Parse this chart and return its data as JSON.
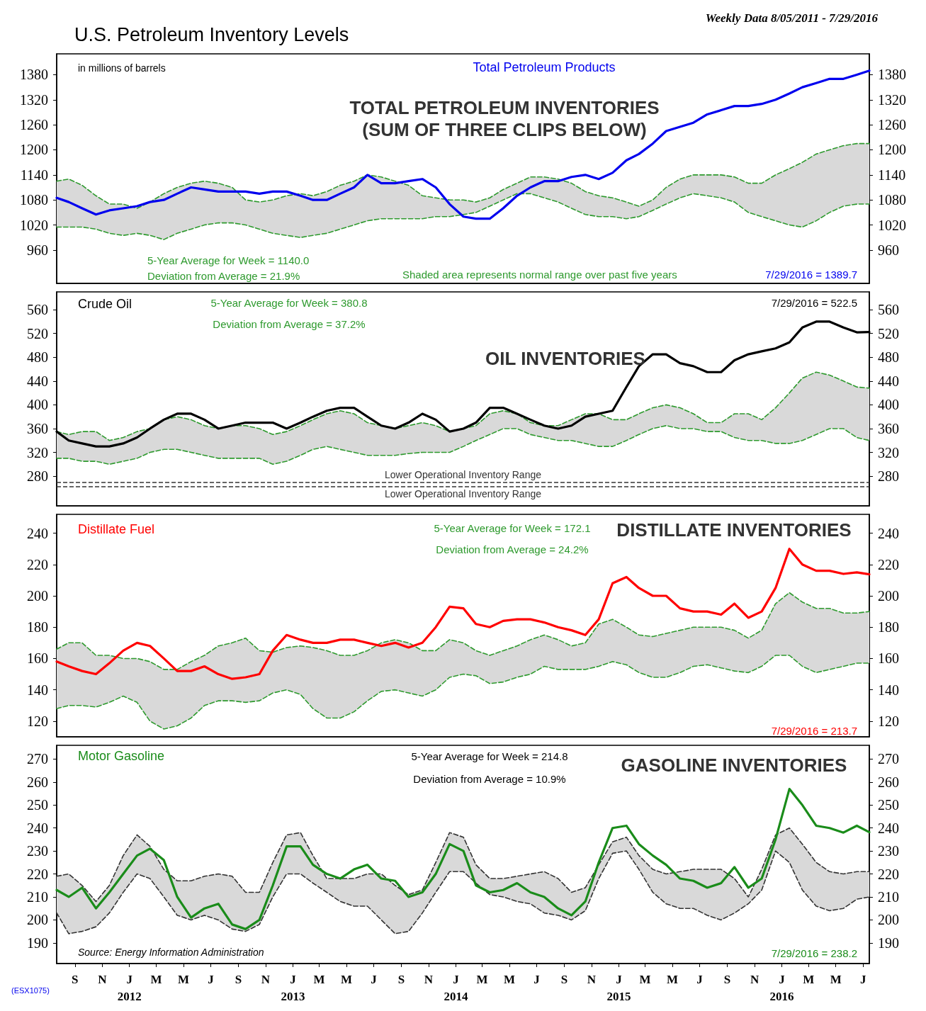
{
  "chart_data": [
    {
      "type": "line",
      "title": "U.S. Petroleum Inventory Levels",
      "subtitle": "Weekly Data 8/05/2011 - 7/29/2016",
      "annotations": [
        "in millions of barrels",
        "TOTAL PETROLEUM INVENTORIES\n(SUM OF THREE CLIPS BELOW)",
        "5-Year Average for Week = 1140.0",
        "Deviation from Average = 21.9%",
        "Shaded area represents normal range over past five years",
        "7/29/2016 = 1389.7"
      ],
      "x": [
        "2011-08-05",
        "2011-09-01",
        "2011-10-01",
        "2011-11-01",
        "2011-12-01",
        "2012-01-01",
        "2012-02-01",
        "2012-03-01",
        "2012-04-01",
        "2012-05-01",
        "2012-06-01",
        "2012-07-01",
        "2012-08-01",
        "2012-09-01",
        "2012-10-01",
        "2012-11-01",
        "2012-12-01",
        "2013-01-01",
        "2013-02-01",
        "2013-03-01",
        "2013-04-01",
        "2013-05-01",
        "2013-06-01",
        "2013-07-01",
        "2013-08-01",
        "2013-09-01",
        "2013-10-01",
        "2013-11-01",
        "2013-12-01",
        "2014-01-01",
        "2014-02-01",
        "2014-03-01",
        "2014-04-01",
        "2014-05-01",
        "2014-06-01",
        "2014-07-01",
        "2014-08-01",
        "2014-09-01",
        "2014-10-01",
        "2014-11-01",
        "2014-12-01",
        "2015-01-01",
        "2015-02-01",
        "2015-03-01",
        "2015-04-01",
        "2015-05-01",
        "2015-06-01",
        "2015-07-01",
        "2015-08-01",
        "2015-09-01",
        "2015-10-01",
        "2015-11-01",
        "2015-12-01",
        "2016-01-01",
        "2016-02-01",
        "2016-03-01",
        "2016-04-01",
        "2016-05-01",
        "2016-06-01",
        "2016-07-01",
        "2016-07-29"
      ],
      "series": [
        {
          "name": "Total Petroleum Products",
          "color": "#0000ee",
          "values": [
            1085,
            1075,
            1060,
            1045,
            1055,
            1060,
            1065,
            1075,
            1080,
            1095,
            1110,
            1105,
            1100,
            1100,
            1100,
            1095,
            1100,
            1100,
            1090,
            1080,
            1080,
            1095,
            1110,
            1140,
            1120,
            1120,
            1125,
            1130,
            1110,
            1070,
            1040,
            1035,
            1035,
            1060,
            1090,
            1110,
            1125,
            1125,
            1135,
            1140,
            1130,
            1145,
            1175,
            1190,
            1215,
            1245,
            1255,
            1265,
            1285,
            1295,
            1305,
            1305,
            1310,
            1320,
            1335,
            1350,
            1360,
            1370,
            1370,
            1380,
            1389.7
          ],
          "upper": [
            1125,
            1130,
            1115,
            1090,
            1070,
            1070,
            1060,
            1075,
            1095,
            1110,
            1120,
            1125,
            1120,
            1110,
            1080,
            1075,
            1080,
            1090,
            1095,
            1090,
            1100,
            1115,
            1125,
            1140,
            1135,
            1125,
            1115,
            1090,
            1085,
            1080,
            1080,
            1075,
            1085,
            1105,
            1120,
            1135,
            1135,
            1130,
            1120,
            1100,
            1090,
            1085,
            1075,
            1065,
            1080,
            1110,
            1130,
            1140,
            1140,
            1140,
            1135,
            1120,
            1120,
            1140,
            1155,
            1170,
            1190,
            1200,
            1210,
            1215,
            1215
          ],
          "lower": [
            1015,
            1015,
            1015,
            1010,
            1000,
            995,
            1000,
            995,
            985,
            1000,
            1010,
            1020,
            1025,
            1025,
            1020,
            1010,
            1000,
            995,
            990,
            995,
            1000,
            1010,
            1020,
            1030,
            1035,
            1035,
            1035,
            1035,
            1040,
            1040,
            1045,
            1050,
            1065,
            1080,
            1095,
            1095,
            1085,
            1075,
            1060,
            1045,
            1040,
            1040,
            1035,
            1040,
            1055,
            1070,
            1085,
            1095,
            1090,
            1085,
            1075,
            1050,
            1040,
            1030,
            1020,
            1015,
            1030,
            1050,
            1065,
            1070,
            1070
          ]
        },
        {
          "color": "#2e9a2e",
          "line_style": "dashed",
          "values": [
            1125,
            1130,
            1115,
            1090,
            1070,
            1070,
            1060,
            1075,
            1095,
            1110,
            1120,
            1125,
            1120,
            1110,
            1080,
            1075,
            1080,
            1090,
            1095,
            1090,
            1100,
            1115,
            1125,
            1140,
            1135,
            1125,
            1115,
            1090,
            1085,
            1080,
            1080,
            1075,
            1085,
            1105,
            1120,
            1135,
            1135,
            1130,
            1120,
            1100,
            1090,
            1085,
            1075,
            1065,
            1080,
            1110,
            1130,
            1140,
            1140,
            1140,
            1135,
            1120,
            1120,
            1140,
            1155,
            1170,
            1190,
            1200,
            1210,
            1215,
            1215
          ]
        },
        {
          "color": "#2e9a2e",
          "line_style": "dashed",
          "values": [
            1015,
            1015,
            1015,
            1010,
            1000,
            995,
            1000,
            995,
            985,
            1000,
            1010,
            1020,
            1025,
            1025,
            1020,
            1010,
            1000,
            995,
            990,
            995,
            1000,
            1010,
            1020,
            1030,
            1035,
            1035,
            1035,
            1035,
            1040,
            1040,
            1045,
            1050,
            1065,
            1080,
            1095,
            1095,
            1085,
            1075,
            1060,
            1045,
            1040,
            1040,
            1035,
            1040,
            1055,
            1070,
            1085,
            1095,
            1090,
            1085,
            1075,
            1050,
            1040,
            1030,
            1020,
            1015,
            1030,
            1050,
            1065,
            1070,
            1070
          ]
        }
      ],
      "xlim": [
        "2011-08-05",
        "2016-07-29"
      ],
      "ylim": [
        880,
        1430
      ],
      "yticks": [
        960,
        1020,
        1080,
        1140,
        1200,
        1260,
        1320,
        1380
      ],
      "y2lim": [
        880,
        1430
      ],
      "y2ticks": [
        960,
        1020,
        1080,
        1140,
        1200,
        1260,
        1320,
        1380
      ],
      "tick_labels": "y",
      "line_style": "solid",
      "marker": "none",
      "grid": false
    },
    {
      "type": "line",
      "annotations": [
        "5-Year Average for Week = 380.8",
        "Deviation from Average = 37.2%",
        "OIL INVENTORIES",
        "7/29/2016 = 522.5"
      ],
      "x": [
        "2011-08-05",
        "2011-09-01",
        "2011-10-01",
        "2011-11-01",
        "2011-12-01",
        "2012-01-01",
        "2012-02-01",
        "2012-03-01",
        "2012-04-01",
        "2012-05-01",
        "2012-06-01",
        "2012-07-01",
        "2012-08-01",
        "2012-09-01",
        "2012-10-01",
        "2012-11-01",
        "2012-12-01",
        "2013-01-01",
        "2013-02-01",
        "2013-03-01",
        "2013-04-01",
        "2013-05-01",
        "2013-06-01",
        "2013-07-01",
        "2013-08-01",
        "2013-09-01",
        "2013-10-01",
        "2013-11-01",
        "2013-12-01",
        "2014-01-01",
        "2014-02-01",
        "2014-03-01",
        "2014-04-01",
        "2014-05-01",
        "2014-06-01",
        "2014-07-01",
        "2014-08-01",
        "2014-09-01",
        "2014-10-01",
        "2014-11-01",
        "2014-12-01",
        "2015-01-01",
        "2015-02-01",
        "2015-03-01",
        "2015-04-01",
        "2015-05-01",
        "2015-06-01",
        "2015-07-01",
        "2015-08-01",
        "2015-09-01",
        "2015-10-01",
        "2015-11-01",
        "2015-12-01",
        "2016-01-01",
        "2016-02-01",
        "2016-03-01",
        "2016-04-01",
        "2016-05-01",
        "2016-06-01",
        "2016-07-01",
        "2016-07-29"
      ],
      "series": [
        {
          "name": "Crude Oil",
          "color": "#000000",
          "values": [
            355,
            340,
            335,
            330,
            330,
            335,
            345,
            360,
            375,
            385,
            385,
            375,
            360,
            365,
            370,
            370,
            370,
            360,
            370,
            380,
            390,
            395,
            395,
            380,
            365,
            360,
            370,
            385,
            375,
            355,
            360,
            370,
            395,
            395,
            385,
            375,
            365,
            360,
            365,
            380,
            385,
            390,
            430,
            465,
            485,
            485,
            470,
            465,
            455,
            455,
            475,
            485,
            490,
            495,
            505,
            530,
            540,
            540,
            530,
            522,
            522.5
          ],
          "upper": [
            355,
            350,
            355,
            355,
            340,
            345,
            355,
            360,
            375,
            380,
            375,
            365,
            360,
            365,
            365,
            360,
            350,
            355,
            365,
            375,
            385,
            390,
            385,
            370,
            365,
            360,
            365,
            370,
            365,
            355,
            360,
            365,
            385,
            390,
            385,
            370,
            365,
            365,
            375,
            385,
            385,
            375,
            375,
            385,
            395,
            400,
            395,
            385,
            370,
            370,
            385,
            385,
            375,
            395,
            420,
            445,
            455,
            450,
            440,
            430,
            428
          ],
          "lower": [
            310,
            310,
            305,
            305,
            300,
            305,
            310,
            320,
            325,
            325,
            320,
            315,
            310,
            310,
            310,
            310,
            300,
            305,
            315,
            325,
            330,
            325,
            320,
            315,
            315,
            315,
            318,
            320,
            320,
            320,
            330,
            340,
            350,
            360,
            360,
            350,
            345,
            340,
            340,
            335,
            330,
            330,
            340,
            350,
            360,
            365,
            360,
            360,
            355,
            355,
            345,
            340,
            340,
            335,
            335,
            340,
            350,
            360,
            360,
            345,
            340
          ]
        },
        {
          "color": "#2e9a2e",
          "line_style": "dashed",
          "values": [
            355,
            350,
            355,
            355,
            340,
            345,
            355,
            360,
            375,
            380,
            375,
            365,
            360,
            365,
            365,
            360,
            350,
            355,
            365,
            375,
            385,
            390,
            385,
            370,
            365,
            360,
            365,
            370,
            365,
            355,
            360,
            365,
            385,
            390,
            385,
            370,
            365,
            365,
            375,
            385,
            385,
            375,
            375,
            385,
            395,
            400,
            395,
            385,
            370,
            370,
            385,
            385,
            375,
            395,
            420,
            445,
            455,
            450,
            440,
            430,
            428
          ]
        },
        {
          "color": "#2e9a2e",
          "line_style": "dashed",
          "values": [
            310,
            310,
            305,
            305,
            300,
            305,
            310,
            320,
            325,
            325,
            320,
            315,
            310,
            310,
            310,
            310,
            300,
            305,
            315,
            325,
            330,
            325,
            320,
            315,
            315,
            315,
            318,
            320,
            320,
            320,
            330,
            340,
            350,
            360,
            360,
            350,
            345,
            340,
            340,
            335,
            330,
            330,
            340,
            350,
            360,
            365,
            360,
            360,
            355,
            355,
            345,
            340,
            340,
            335,
            335,
            340,
            350,
            360,
            360,
            345,
            340
          ]
        }
      ],
      "ref_lines": [
        {
          "axis": "y",
          "value": 270,
          "label": "Lower Operational Inventory Range",
          "line_style": "dashed"
        },
        {
          "axis": "y",
          "value": 262,
          "label": "Lower Operational Inventory Range",
          "line_style": "dashed"
        }
      ],
      "xlim": [
        "2011-08-05",
        "2016-07-29"
      ],
      "ylim": [
        230,
        590
      ],
      "yticks": [
        280,
        320,
        360,
        400,
        440,
        480,
        520,
        560
      ],
      "y2lim": [
        230,
        590
      ],
      "y2ticks": [
        280,
        320,
        360,
        400,
        440,
        480,
        520,
        560
      ],
      "tick_labels": "y",
      "line_style": "solid",
      "marker": "none",
      "grid": false
    },
    {
      "type": "line",
      "annotations": [
        "5-Year Average for Week = 172.1",
        "Deviation from Average = 24.2%",
        "DISTILLATE INVENTORIES",
        "7/29/2016 = 213.7"
      ],
      "x": [
        "2011-08-05",
        "2011-09-01",
        "2011-10-01",
        "2011-11-01",
        "2011-12-01",
        "2012-01-01",
        "2012-02-01",
        "2012-03-01",
        "2012-04-01",
        "2012-05-01",
        "2012-06-01",
        "2012-07-01",
        "2012-08-01",
        "2012-09-01",
        "2012-10-01",
        "2012-11-01",
        "2012-12-01",
        "2013-01-01",
        "2013-02-01",
        "2013-03-01",
        "2013-04-01",
        "2013-05-01",
        "2013-06-01",
        "2013-07-01",
        "2013-08-01",
        "2013-09-01",
        "2013-10-01",
        "2013-11-01",
        "2013-12-01",
        "2014-01-01",
        "2014-02-01",
        "2014-03-01",
        "2014-04-01",
        "2014-05-01",
        "2014-06-01",
        "2014-07-01",
        "2014-08-01",
        "2014-09-01",
        "2014-10-01",
        "2014-11-01",
        "2014-12-01",
        "2015-01-01",
        "2015-02-01",
        "2015-03-01",
        "2015-04-01",
        "2015-05-01",
        "2015-06-01",
        "2015-07-01",
        "2015-08-01",
        "2015-09-01",
        "2015-10-01",
        "2015-11-01",
        "2015-12-01",
        "2016-01-01",
        "2016-02-01",
        "2016-03-01",
        "2016-04-01",
        "2016-05-01",
        "2016-06-01",
        "2016-07-01",
        "2016-07-29"
      ],
      "series": [
        {
          "name": "Distillate Fuel",
          "color": "#ff0000",
          "values": [
            158,
            155,
            152,
            150,
            157,
            165,
            170,
            168,
            160,
            152,
            152,
            155,
            150,
            147,
            148,
            150,
            165,
            175,
            172,
            170,
            170,
            172,
            172,
            170,
            168,
            170,
            167,
            170,
            180,
            193,
            192,
            182,
            180,
            184,
            185,
            185,
            183,
            180,
            178,
            175,
            185,
            208,
            212,
            205,
            200,
            200,
            192,
            190,
            190,
            188,
            195,
            186,
            190,
            205,
            230,
            220,
            216,
            216,
            214,
            215,
            213.7
          ],
          "upper": [
            166,
            170,
            170,
            162,
            162,
            160,
            160,
            158,
            153,
            153,
            158,
            162,
            168,
            170,
            173,
            165,
            164,
            167,
            168,
            167,
            165,
            162,
            162,
            165,
            170,
            172,
            170,
            165,
            165,
            172,
            170,
            165,
            162,
            165,
            168,
            172,
            175,
            172,
            168,
            170,
            182,
            185,
            180,
            175,
            174,
            176,
            178,
            180,
            180,
            180,
            178,
            173,
            178,
            195,
            202,
            196,
            192,
            192,
            189,
            189,
            190
          ],
          "lower": [
            128,
            130,
            130,
            129,
            132,
            136,
            132,
            120,
            115,
            117,
            122,
            130,
            133,
            133,
            132,
            133,
            138,
            140,
            137,
            128,
            122,
            122,
            126,
            133,
            139,
            140,
            138,
            136,
            140,
            148,
            150,
            149,
            144,
            145,
            148,
            150,
            155,
            153,
            153,
            153,
            155,
            158,
            156,
            151,
            148,
            148,
            151,
            155,
            156,
            154,
            152,
            151,
            155,
            162,
            162,
            155,
            151,
            153,
            155,
            157,
            157
          ]
        },
        {
          "color": "#2e9a2e",
          "line_style": "dashed",
          "values": [
            166,
            170,
            170,
            162,
            162,
            160,
            160,
            158,
            153,
            153,
            158,
            162,
            168,
            170,
            173,
            165,
            164,
            167,
            168,
            167,
            165,
            162,
            162,
            165,
            170,
            172,
            170,
            165,
            165,
            172,
            170,
            165,
            162,
            165,
            168,
            172,
            175,
            172,
            168,
            170,
            182,
            185,
            180,
            175,
            174,
            176,
            178,
            180,
            180,
            180,
            178,
            173,
            178,
            195,
            202,
            196,
            192,
            192,
            189,
            189,
            190
          ]
        },
        {
          "color": "#2e9a2e",
          "line_style": "dashed",
          "values": [
            128,
            130,
            130,
            129,
            132,
            136,
            132,
            120,
            115,
            117,
            122,
            130,
            133,
            133,
            132,
            133,
            138,
            140,
            137,
            128,
            122,
            122,
            126,
            133,
            139,
            140,
            138,
            136,
            140,
            148,
            150,
            149,
            144,
            145,
            148,
            150,
            155,
            153,
            153,
            153,
            155,
            158,
            156,
            151,
            148,
            148,
            151,
            155,
            156,
            154,
            152,
            151,
            155,
            162,
            162,
            155,
            151,
            153,
            155,
            157,
            157
          ]
        }
      ],
      "xlim": [
        "2011-08-05",
        "2016-07-29"
      ],
      "ylim": [
        110,
        252
      ],
      "yticks": [
        120,
        140,
        160,
        180,
        200,
        220,
        240
      ],
      "y2lim": [
        110,
        252
      ],
      "y2ticks": [
        120,
        140,
        160,
        180,
        200,
        220,
        240
      ],
      "tick_labels": "y",
      "line_style": "solid",
      "marker": "none",
      "grid": false
    },
    {
      "type": "line",
      "annotations": [
        "5-Year Average for Week = 214.8",
        "Deviation from Average = 10.9%",
        "GASOLINE INVENTORIES",
        "7/29/2016 = 238.2",
        "Source: Energy Information Administration",
        "(ESX1075)"
      ],
      "x": [
        "2011-08-05",
        "2011-09-01",
        "2011-10-01",
        "2011-11-01",
        "2011-12-01",
        "2012-01-01",
        "2012-02-01",
        "2012-03-01",
        "2012-04-01",
        "2012-05-01",
        "2012-06-01",
        "2012-07-01",
        "2012-08-01",
        "2012-09-01",
        "2012-10-01",
        "2012-11-01",
        "2012-12-01",
        "2013-01-01",
        "2013-02-01",
        "2013-03-01",
        "2013-04-01",
        "2013-05-01",
        "2013-06-01",
        "2013-07-01",
        "2013-08-01",
        "2013-09-01",
        "2013-10-01",
        "2013-11-01",
        "2013-12-01",
        "2014-01-01",
        "2014-02-01",
        "2014-03-01",
        "2014-04-01",
        "2014-05-01",
        "2014-06-01",
        "2014-07-01",
        "2014-08-01",
        "2014-09-01",
        "2014-10-01",
        "2014-11-01",
        "2014-12-01",
        "2015-01-01",
        "2015-02-01",
        "2015-03-01",
        "2015-04-01",
        "2015-05-01",
        "2015-06-01",
        "2015-07-01",
        "2015-08-01",
        "2015-09-01",
        "2015-10-01",
        "2015-11-01",
        "2015-12-01",
        "2016-01-01",
        "2016-02-01",
        "2016-03-01",
        "2016-04-01",
        "2016-05-01",
        "2016-06-01",
        "2016-07-01",
        "2016-07-29"
      ],
      "series": [
        {
          "name": "Motor Gasoline",
          "color": "#1a8c1a",
          "values": [
            213,
            210,
            214,
            205,
            212,
            220,
            228,
            231,
            226,
            210,
            201,
            205,
            207,
            198,
            196,
            200,
            215,
            232,
            232,
            224,
            220,
            218,
            222,
            224,
            218,
            217,
            210,
            212,
            220,
            233,
            230,
            215,
            212,
            213,
            216,
            212,
            210,
            205,
            202,
            208,
            225,
            240,
            241,
            233,
            228,
            224,
            218,
            217,
            214,
            216,
            223,
            214,
            218,
            235,
            257,
            250,
            241,
            240,
            238,
            241,
            238.2
          ],
          "upper": [
            219,
            220,
            215,
            208,
            215,
            228,
            237,
            232,
            222,
            217,
            217,
            219,
            220,
            219,
            212,
            212,
            225,
            237,
            238,
            228,
            218,
            218,
            218,
            220,
            220,
            215,
            211,
            213,
            225,
            238,
            236,
            224,
            218,
            218,
            219,
            220,
            221,
            218,
            212,
            214,
            224,
            234,
            236,
            228,
            222,
            220,
            221,
            222,
            222,
            222,
            218,
            210,
            222,
            237,
            240,
            233,
            225,
            221,
            220,
            221,
            221
          ],
          "lower": [
            203,
            194,
            195,
            197,
            203,
            212,
            220,
            218,
            210,
            202,
            200,
            202,
            200,
            196,
            195,
            198,
            210,
            220,
            220,
            216,
            212,
            208,
            206,
            206,
            200,
            194,
            195,
            203,
            212,
            221,
            221,
            216,
            211,
            210,
            208,
            207,
            203,
            202,
            200,
            204,
            218,
            229,
            230,
            222,
            212,
            207,
            205,
            205,
            202,
            200,
            203,
            207,
            213,
            230,
            225,
            213,
            206,
            204,
            205,
            209,
            210
          ]
        },
        {
          "color": "#333333",
          "line_style": "dashed",
          "values": [
            219,
            220,
            215,
            208,
            215,
            228,
            237,
            232,
            222,
            217,
            217,
            219,
            220,
            219,
            212,
            212,
            225,
            237,
            238,
            228,
            218,
            218,
            218,
            220,
            220,
            215,
            211,
            213,
            225,
            238,
            236,
            224,
            218,
            218,
            219,
            220,
            221,
            218,
            212,
            214,
            224,
            234,
            236,
            228,
            222,
            220,
            221,
            222,
            222,
            222,
            218,
            210,
            222,
            237,
            240,
            233,
            225,
            221,
            220,
            221,
            221
          ]
        },
        {
          "color": "#333333",
          "line_style": "dashed",
          "values": [
            203,
            194,
            195,
            197,
            203,
            212,
            220,
            218,
            210,
            202,
            200,
            202,
            200,
            196,
            195,
            198,
            210,
            220,
            220,
            216,
            212,
            208,
            206,
            206,
            200,
            194,
            195,
            203,
            212,
            221,
            221,
            216,
            211,
            210,
            208,
            207,
            203,
            202,
            200,
            204,
            218,
            229,
            230,
            222,
            212,
            207,
            205,
            205,
            202,
            200,
            203,
            207,
            213,
            230,
            225,
            213,
            206,
            204,
            205,
            209,
            210
          ]
        }
      ],
      "xlim": [
        "2011-08-05",
        "2016-07-29"
      ],
      "xticks": [
        {
          "value": "2011-09-15",
          "label": "S"
        },
        {
          "value": "2011-11-15",
          "label": "N"
        },
        {
          "value": "2012-01-15",
          "label": "J\n2012"
        },
        {
          "value": "2012-03-15",
          "label": "M"
        },
        {
          "value": "2012-05-15",
          "label": "M"
        },
        {
          "value": "2012-07-15",
          "label": "J"
        },
        {
          "value": "2012-09-15",
          "label": "S"
        },
        {
          "value": "2012-11-15",
          "label": "N"
        },
        {
          "value": "2013-01-15",
          "label": "J\n2013"
        },
        {
          "value": "2013-03-15",
          "label": "M"
        },
        {
          "value": "2013-05-15",
          "label": "M"
        },
        {
          "value": "2013-07-15",
          "label": "J"
        },
        {
          "value": "2013-09-15",
          "label": "S"
        },
        {
          "value": "2013-11-15",
          "label": "N"
        },
        {
          "value": "2014-01-15",
          "label": "J\n2014"
        },
        {
          "value": "2014-03-15",
          "label": "M"
        },
        {
          "value": "2014-05-15",
          "label": "M"
        },
        {
          "value": "2014-07-15",
          "label": "J"
        },
        {
          "value": "2014-09-15",
          "label": "S"
        },
        {
          "value": "2014-11-15",
          "label": "N"
        },
        {
          "value": "2015-01-15",
          "label": "J\n2015"
        },
        {
          "value": "2015-03-15",
          "label": "M"
        },
        {
          "value": "2015-05-15",
          "label": "M"
        },
        {
          "value": "2015-07-15",
          "label": "J"
        },
        {
          "value": "2015-09-15",
          "label": "S"
        },
        {
          "value": "2015-11-15",
          "label": "N"
        },
        {
          "value": "2016-01-15",
          "label": "J\n2016"
        },
        {
          "value": "2016-03-15",
          "label": "M"
        },
        {
          "value": "2016-05-15",
          "label": "M"
        },
        {
          "value": "2016-07-15",
          "label": "J"
        }
      ],
      "ylim": [
        181,
        276
      ],
      "yticks": [
        190,
        200,
        210,
        220,
        230,
        240,
        250,
        260,
        270
      ],
      "y2lim": [
        181,
        276
      ],
      "y2ticks": [
        190,
        200,
        210,
        220,
        230,
        240,
        250,
        260,
        270
      ],
      "line_style": "solid",
      "marker": "none",
      "grid": false
    }
  ]
}
